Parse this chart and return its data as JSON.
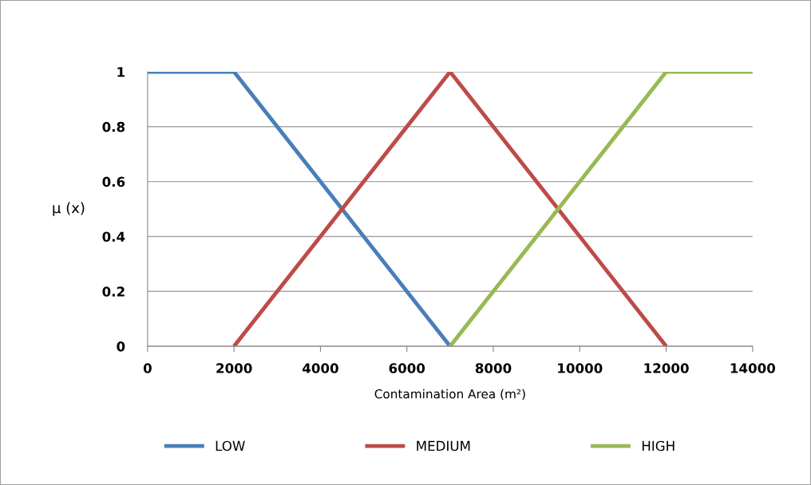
{
  "chart_data": {
    "type": "line",
    "xlabel": "Contamination Area (m²)",
    "ylabel": "μ (x)",
    "series": [
      {
        "name": "LOW",
        "color": "#4a7ebb",
        "x": [
          0,
          2000,
          7000
        ],
        "values": [
          1,
          1,
          0
        ]
      },
      {
        "name": "MEDIUM",
        "color": "#be4b48",
        "x": [
          2000,
          7000,
          12000
        ],
        "values": [
          0,
          1,
          0
        ]
      },
      {
        "name": "HIGH",
        "color": "#98b954",
        "x": [
          7000,
          12000,
          14000
        ],
        "values": [
          0,
          1,
          1
        ]
      }
    ],
    "xlim": [
      0,
      14000
    ],
    "xticks": [
      0,
      2000,
      4000,
      6000,
      8000,
      10000,
      12000,
      14000
    ],
    "ylim": [
      0,
      1
    ],
    "yticks": [
      0,
      0.2,
      0.4,
      0.6,
      0.8,
      1
    ],
    "grid": "y",
    "legend": "bottom",
    "marker": "none",
    "line_style": "solid"
  }
}
